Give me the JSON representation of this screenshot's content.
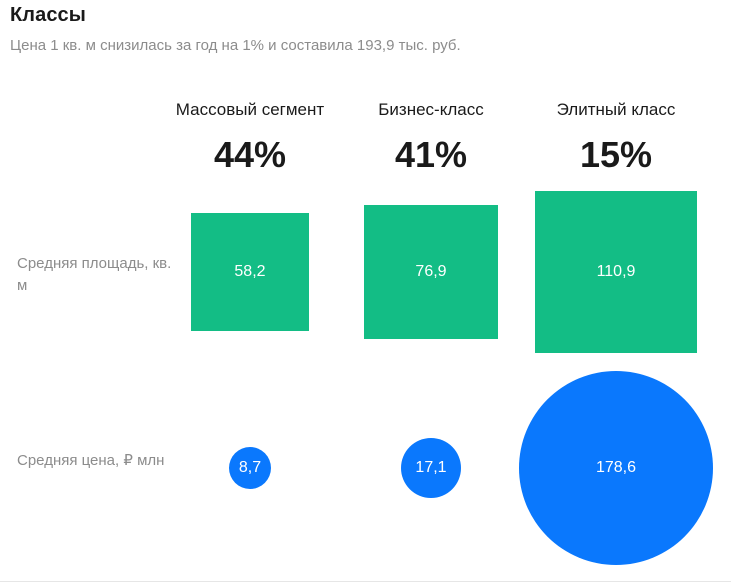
{
  "chart_data": {
    "type": "table",
    "title": "Классы",
    "subtitle": "Цена 1 кв. м снизилась за год на 1% и составила 193,9 тыс. руб.",
    "categories": [
      "Массовый сегмент",
      "Бизнес-класс",
      "Элитный класс"
    ],
    "shares": [
      "44%",
      "41%",
      "15%"
    ],
    "rows": [
      {
        "label": "Средняя площадь, кв. м",
        "values": [
          58.2,
          76.9,
          110.9
        ],
        "value_labels": [
          "58,2",
          "76,9",
          "110,9"
        ],
        "shape": "square",
        "color": "#13bd85"
      },
      {
        "label": "Средняя цена, ₽ млн",
        "values": [
          8.7,
          17.1,
          178.6
        ],
        "value_labels": [
          "8,7",
          "17,1",
          "178,6"
        ],
        "shape": "circle",
        "color": "#0a78fd"
      }
    ]
  }
}
